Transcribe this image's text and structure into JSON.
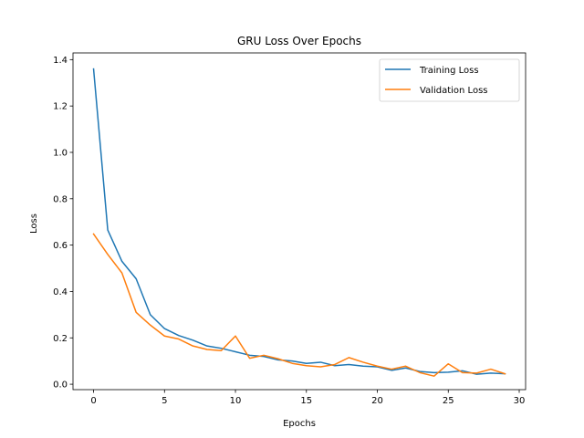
{
  "chart_data": {
    "type": "line",
    "title": "GRU Loss Over Epochs",
    "xlabel": "Epochs",
    "ylabel": "Loss",
    "xlim": [
      -1.45,
      30.45
    ],
    "ylim": [
      -0.0233,
      1.4289
    ],
    "xticks": [
      0,
      5,
      10,
      15,
      20,
      25,
      30
    ],
    "yticks": [
      0.0,
      0.2,
      0.4,
      0.6,
      0.8,
      1.0,
      1.2,
      1.4
    ],
    "xtick_labels": [
      "0",
      "5",
      "10",
      "15",
      "20",
      "25",
      "30"
    ],
    "ytick_labels": [
      "0.0",
      "0.2",
      "0.4",
      "0.6",
      "0.8",
      "1.0",
      "1.2",
      "1.4"
    ],
    "legend_position": "top-right",
    "grid": false,
    "x": [
      0,
      1,
      2,
      3,
      4,
      5,
      6,
      7,
      8,
      9,
      10,
      11,
      12,
      13,
      14,
      15,
      16,
      17,
      18,
      19,
      20,
      21,
      22,
      23,
      24,
      25,
      26,
      27,
      28,
      29
    ],
    "series": [
      {
        "name": "Training Loss",
        "color": "#1f77b4",
        "values": [
          1.36,
          0.665,
          0.53,
          0.455,
          0.3,
          0.24,
          0.21,
          0.19,
          0.165,
          0.155,
          0.14,
          0.125,
          0.12,
          0.105,
          0.1,
          0.09,
          0.095,
          0.08,
          0.085,
          0.078,
          0.075,
          0.06,
          0.07,
          0.055,
          0.05,
          0.052,
          0.058,
          0.043,
          0.048,
          0.045
        ]
      },
      {
        "name": "Validation Loss",
        "color": "#ff7f0e",
        "values": [
          0.648,
          0.56,
          0.48,
          0.31,
          0.255,
          0.208,
          0.195,
          0.165,
          0.15,
          0.145,
          0.208,
          0.112,
          0.125,
          0.11,
          0.09,
          0.08,
          0.075,
          0.085,
          0.115,
          0.095,
          0.078,
          0.065,
          0.078,
          0.05,
          0.035,
          0.088,
          0.05,
          0.048,
          0.065,
          0.045
        ]
      }
    ]
  }
}
